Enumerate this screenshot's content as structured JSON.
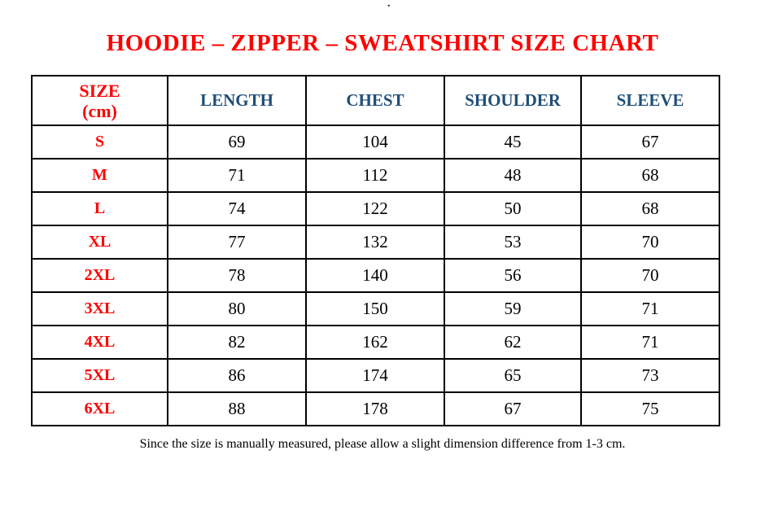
{
  "page": {
    "stray_mark": ".",
    "title": "HOODIE – ZIPPER – SWEATSHIRT SIZE CHART",
    "footer_note": "Since the size is manually measured, please allow a slight dimension difference from 1-3 cm."
  },
  "table": {
    "header": {
      "size_line1": "SIZE",
      "size_line2": "(cm)",
      "columns": [
        "LENGTH",
        "CHEST",
        "SHOULDER",
        "SLEEVE"
      ]
    },
    "rows": [
      {
        "size": "S",
        "length": "69",
        "chest": "104",
        "shoulder": "45",
        "sleeve": "67"
      },
      {
        "size": "M",
        "length": "71",
        "chest": "112",
        "shoulder": "48",
        "sleeve": "68"
      },
      {
        "size": "L",
        "length": "74",
        "chest": "122",
        "shoulder": "50",
        "sleeve": "68"
      },
      {
        "size": "XL",
        "length": "77",
        "chest": "132",
        "shoulder": "53",
        "sleeve": "70"
      },
      {
        "size": "2XL",
        "length": "78",
        "chest": "140",
        "shoulder": "56",
        "sleeve": "70"
      },
      {
        "size": "3XL",
        "length": "80",
        "chest": "150",
        "shoulder": "59",
        "sleeve": "71"
      },
      {
        "size": "4XL",
        "length": "82",
        "chest": "162",
        "shoulder": "62",
        "sleeve": "71"
      },
      {
        "size": "5XL",
        "length": "86",
        "chest": "174",
        "shoulder": "65",
        "sleeve": "73"
      },
      {
        "size": "6XL",
        "length": "88",
        "chest": "178",
        "shoulder": "67",
        "sleeve": "75"
      }
    ]
  },
  "chart_data": {
    "type": "table",
    "title": "HOODIE – ZIPPER – SWEATSHIRT SIZE CHART",
    "unit": "cm",
    "columns": [
      "SIZE (cm)",
      "LENGTH",
      "CHEST",
      "SHOULDER",
      "SLEEVE"
    ],
    "rows": [
      [
        "S",
        69,
        104,
        45,
        67
      ],
      [
        "M",
        71,
        112,
        48,
        68
      ],
      [
        "L",
        74,
        122,
        50,
        68
      ],
      [
        "XL",
        77,
        132,
        53,
        70
      ],
      [
        "2XL",
        78,
        140,
        56,
        70
      ],
      [
        "3XL",
        80,
        150,
        59,
        71
      ],
      [
        "4XL",
        82,
        162,
        62,
        71
      ],
      [
        "5XL",
        86,
        174,
        65,
        73
      ],
      [
        "6XL",
        88,
        178,
        67,
        75
      ]
    ],
    "note": "Since the size is manually measured, please allow a slight dimension difference from 1-3 cm."
  },
  "colors": {
    "title_red": "#ff0000",
    "header_blue": "#1f4e79",
    "text_black": "#000000",
    "border_black": "#000000",
    "background": "#ffffff"
  }
}
